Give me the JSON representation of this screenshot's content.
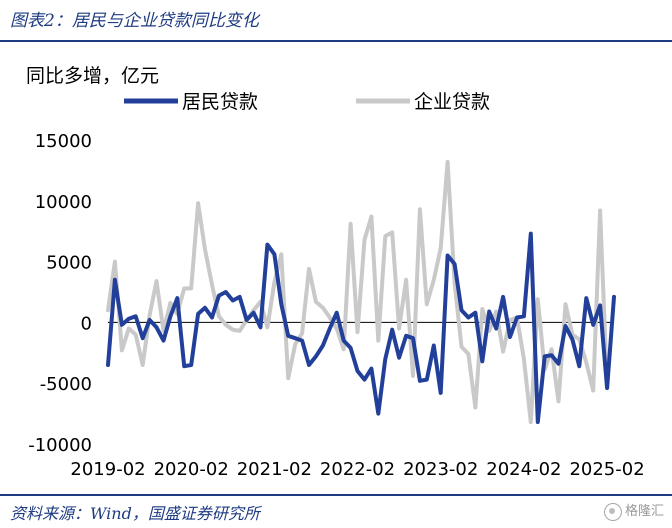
{
  "header": {
    "title": "图表2：居民与企业贷款同比变化"
  },
  "footer": {
    "source": "资料来源：Wind，国盛证券研究所",
    "watermark": "格隆汇"
  },
  "chart_data": {
    "type": "line",
    "unit_label": "同比多增，亿元",
    "ylim": [
      -10000,
      15000
    ],
    "yticks": [
      -10000,
      -5000,
      0,
      5000,
      10000,
      15000
    ],
    "xlim": [
      "2019-02",
      "2025-03"
    ],
    "xticks": [
      "2019-02",
      "2020-02",
      "2021-02",
      "2022-02",
      "2023-02",
      "2024-02",
      "2025-02"
    ],
    "legend_position": "top",
    "grid": false,
    "series": [
      {
        "name": "居民贷款",
        "color": "#22409a",
        "values": [
          [
            "2019-02",
            -3500
          ],
          [
            "2019-03",
            3500
          ],
          [
            "2019-04",
            -200
          ],
          [
            "2019-05",
            300
          ],
          [
            "2019-06",
            500
          ],
          [
            "2019-07",
            -1300
          ],
          [
            "2019-08",
            200
          ],
          [
            "2019-09",
            -400
          ],
          [
            "2019-10",
            -1500
          ],
          [
            "2019-11",
            500
          ],
          [
            "2019-12",
            2000
          ],
          [
            "2020-01",
            -3600
          ],
          [
            "2020-02",
            -3500
          ],
          [
            "2020-03",
            700
          ],
          [
            "2020-04",
            1200
          ],
          [
            "2020-05",
            400
          ],
          [
            "2020-06",
            2200
          ],
          [
            "2020-07",
            2500
          ],
          [
            "2020-08",
            1800
          ],
          [
            "2020-09",
            2100
          ],
          [
            "2020-10",
            200
          ],
          [
            "2020-11",
            800
          ],
          [
            "2020-12",
            -400
          ],
          [
            "2021-01",
            6400
          ],
          [
            "2021-02",
            5600
          ],
          [
            "2021-03",
            1500
          ],
          [
            "2021-04",
            -1100
          ],
          [
            "2021-05",
            -1300
          ],
          [
            "2021-06",
            -1500
          ],
          [
            "2021-07",
            -3500
          ],
          [
            "2021-08",
            -2800
          ],
          [
            "2021-09",
            -1900
          ],
          [
            "2021-10",
            -500
          ],
          [
            "2021-11",
            800
          ],
          [
            "2021-12",
            -1500
          ],
          [
            "2022-01",
            -2100
          ],
          [
            "2022-02",
            -4000
          ],
          [
            "2022-03",
            -4700
          ],
          [
            "2022-04",
            -3800
          ],
          [
            "2022-05",
            -7500
          ],
          [
            "2022-06",
            -3000
          ],
          [
            "2022-07",
            -600
          ],
          [
            "2022-08",
            -2900
          ],
          [
            "2022-09",
            -1100
          ],
          [
            "2022-10",
            -1300
          ],
          [
            "2022-11",
            -4800
          ],
          [
            "2022-12",
            -4700
          ],
          [
            "2023-01",
            -1900
          ],
          [
            "2023-02",
            -5800
          ],
          [
            "2023-03",
            5500
          ],
          [
            "2023-04",
            4800
          ],
          [
            "2023-05",
            1000
          ],
          [
            "2023-06",
            400
          ],
          [
            "2023-07",
            800
          ],
          [
            "2023-08",
            -3200
          ],
          [
            "2023-09",
            900
          ],
          [
            "2023-10",
            -500
          ],
          [
            "2023-11",
            2100
          ],
          [
            "2023-12",
            -1200
          ],
          [
            "2024-01",
            400
          ],
          [
            "2024-02",
            500
          ],
          [
            "2024-03",
            7300
          ],
          [
            "2024-04",
            -8200
          ],
          [
            "2024-05",
            -2800
          ],
          [
            "2024-06",
            -2700
          ],
          [
            "2024-07",
            -3400
          ],
          [
            "2024-08",
            -300
          ],
          [
            "2024-09",
            -1400
          ],
          [
            "2024-10",
            -3600
          ],
          [
            "2024-11",
            2000
          ],
          [
            "2024-12",
            -200
          ],
          [
            "2025-01",
            1400
          ],
          [
            "2025-02",
            -5400
          ],
          [
            "2025-03",
            2100
          ]
        ]
      },
      {
        "name": "企业贷款",
        "color": "#c9c9c9",
        "values": [
          [
            "2019-02",
            1000
          ],
          [
            "2019-03",
            5000
          ],
          [
            "2019-04",
            -2300
          ],
          [
            "2019-05",
            -500
          ],
          [
            "2019-06",
            -1000
          ],
          [
            "2019-07",
            -3500
          ],
          [
            "2019-08",
            600
          ],
          [
            "2019-09",
            3400
          ],
          [
            "2019-10",
            -700
          ],
          [
            "2019-11",
            1600
          ],
          [
            "2019-12",
            700
          ],
          [
            "2020-01",
            2800
          ],
          [
            "2020-02",
            2800
          ],
          [
            "2020-03",
            9800
          ],
          [
            "2020-04",
            6000
          ],
          [
            "2020-05",
            3100
          ],
          [
            "2020-06",
            500
          ],
          [
            "2020-07",
            -200
          ],
          [
            "2020-08",
            -600
          ],
          [
            "2020-09",
            -700
          ],
          [
            "2020-10",
            200
          ],
          [
            "2020-11",
            1000
          ],
          [
            "2020-12",
            1700
          ],
          [
            "2021-01",
            -400
          ],
          [
            "2021-02",
            3300
          ],
          [
            "2021-03",
            5600
          ],
          [
            "2021-04",
            -4600
          ],
          [
            "2021-05",
            -1800
          ],
          [
            "2021-06",
            -900
          ],
          [
            "2021-07",
            4400
          ],
          [
            "2021-08",
            1700
          ],
          [
            "2021-09",
            1200
          ],
          [
            "2021-10",
            400
          ],
          [
            "2021-11",
            -500
          ],
          [
            "2021-12",
            -2200
          ],
          [
            "2022-01",
            8100
          ],
          [
            "2022-02",
            -800
          ],
          [
            "2022-03",
            6800
          ],
          [
            "2022-04",
            8700
          ],
          [
            "2022-05",
            -1500
          ],
          [
            "2022-06",
            7100
          ],
          [
            "2022-07",
            7400
          ],
          [
            "2022-08",
            -500
          ],
          [
            "2022-09",
            3500
          ],
          [
            "2022-10",
            -4400
          ],
          [
            "2022-11",
            9300
          ],
          [
            "2022-12",
            1500
          ],
          [
            "2023-01",
            3500
          ],
          [
            "2023-02",
            6100
          ],
          [
            "2023-03",
            13200
          ],
          [
            "2023-04",
            3200
          ],
          [
            "2023-05",
            -2000
          ],
          [
            "2023-06",
            -2600
          ],
          [
            "2023-07",
            -7000
          ],
          [
            "2023-08",
            1100
          ],
          [
            "2023-09",
            -700
          ],
          [
            "2023-10",
            900
          ],
          [
            "2023-11",
            -2400
          ],
          [
            "2023-12",
            200
          ],
          [
            "2024-01",
            400
          ],
          [
            "2024-02",
            -3000
          ],
          [
            "2024-03",
            -8200
          ],
          [
            "2024-04",
            1900
          ],
          [
            "2024-05",
            -3900
          ],
          [
            "2024-06",
            -2200
          ],
          [
            "2024-07",
            -6500
          ],
          [
            "2024-08",
            1500
          ],
          [
            "2024-09",
            -1000
          ],
          [
            "2024-10",
            -1400
          ],
          [
            "2024-11",
            -3300
          ],
          [
            "2024-12",
            -5600
          ],
          [
            "2025-01",
            9200
          ],
          [
            "2025-02",
            -5300
          ]
        ]
      }
    ]
  }
}
